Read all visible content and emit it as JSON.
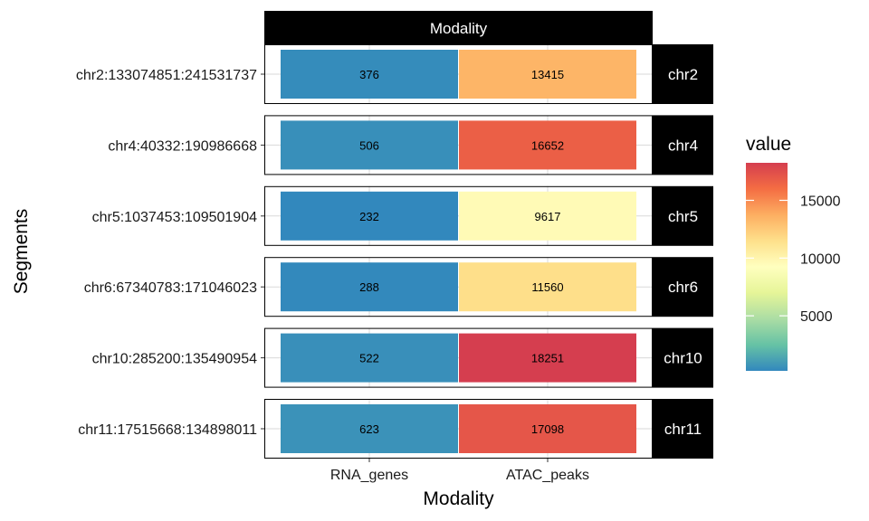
{
  "chart_data": {
    "type": "heatmap",
    "title": "",
    "top_strip_label": "Modality",
    "xlabel": "Modality",
    "ylabel": "Segments",
    "categories": [
      "RNA_genes",
      "ATAC_peaks"
    ],
    "rows": [
      {
        "segment": "chr2:133074851:241531737",
        "facet": "chr2",
        "values": [
          376,
          13415
        ]
      },
      {
        "segment": "chr4:40332:190986668",
        "facet": "chr4",
        "values": [
          506,
          16652
        ]
      },
      {
        "segment": "chr5:1037453:109501904",
        "facet": "chr5",
        "values": [
          232,
          9617
        ]
      },
      {
        "segment": "chr6:67340783:171046023",
        "facet": "chr6",
        "values": [
          288,
          11560
        ]
      },
      {
        "segment": "chr10:285200:135490954",
        "facet": "chr10",
        "values": [
          522,
          18251
        ]
      },
      {
        "segment": "chr11:17515668:134898011",
        "facet": "chr11",
        "values": [
          623,
          17098
        ]
      }
    ],
    "legend": {
      "title": "value",
      "ticks": [
        5000,
        10000,
        15000
      ],
      "range": [
        232,
        18251
      ],
      "palette": "Spectral (reversed)",
      "colors": [
        "#3288bd",
        "#66c2a5",
        "#abdda4",
        "#e6f598",
        "#ffffbf",
        "#fee08b",
        "#fdae61",
        "#f46d43",
        "#d53e4f"
      ]
    },
    "grid": true
  }
}
